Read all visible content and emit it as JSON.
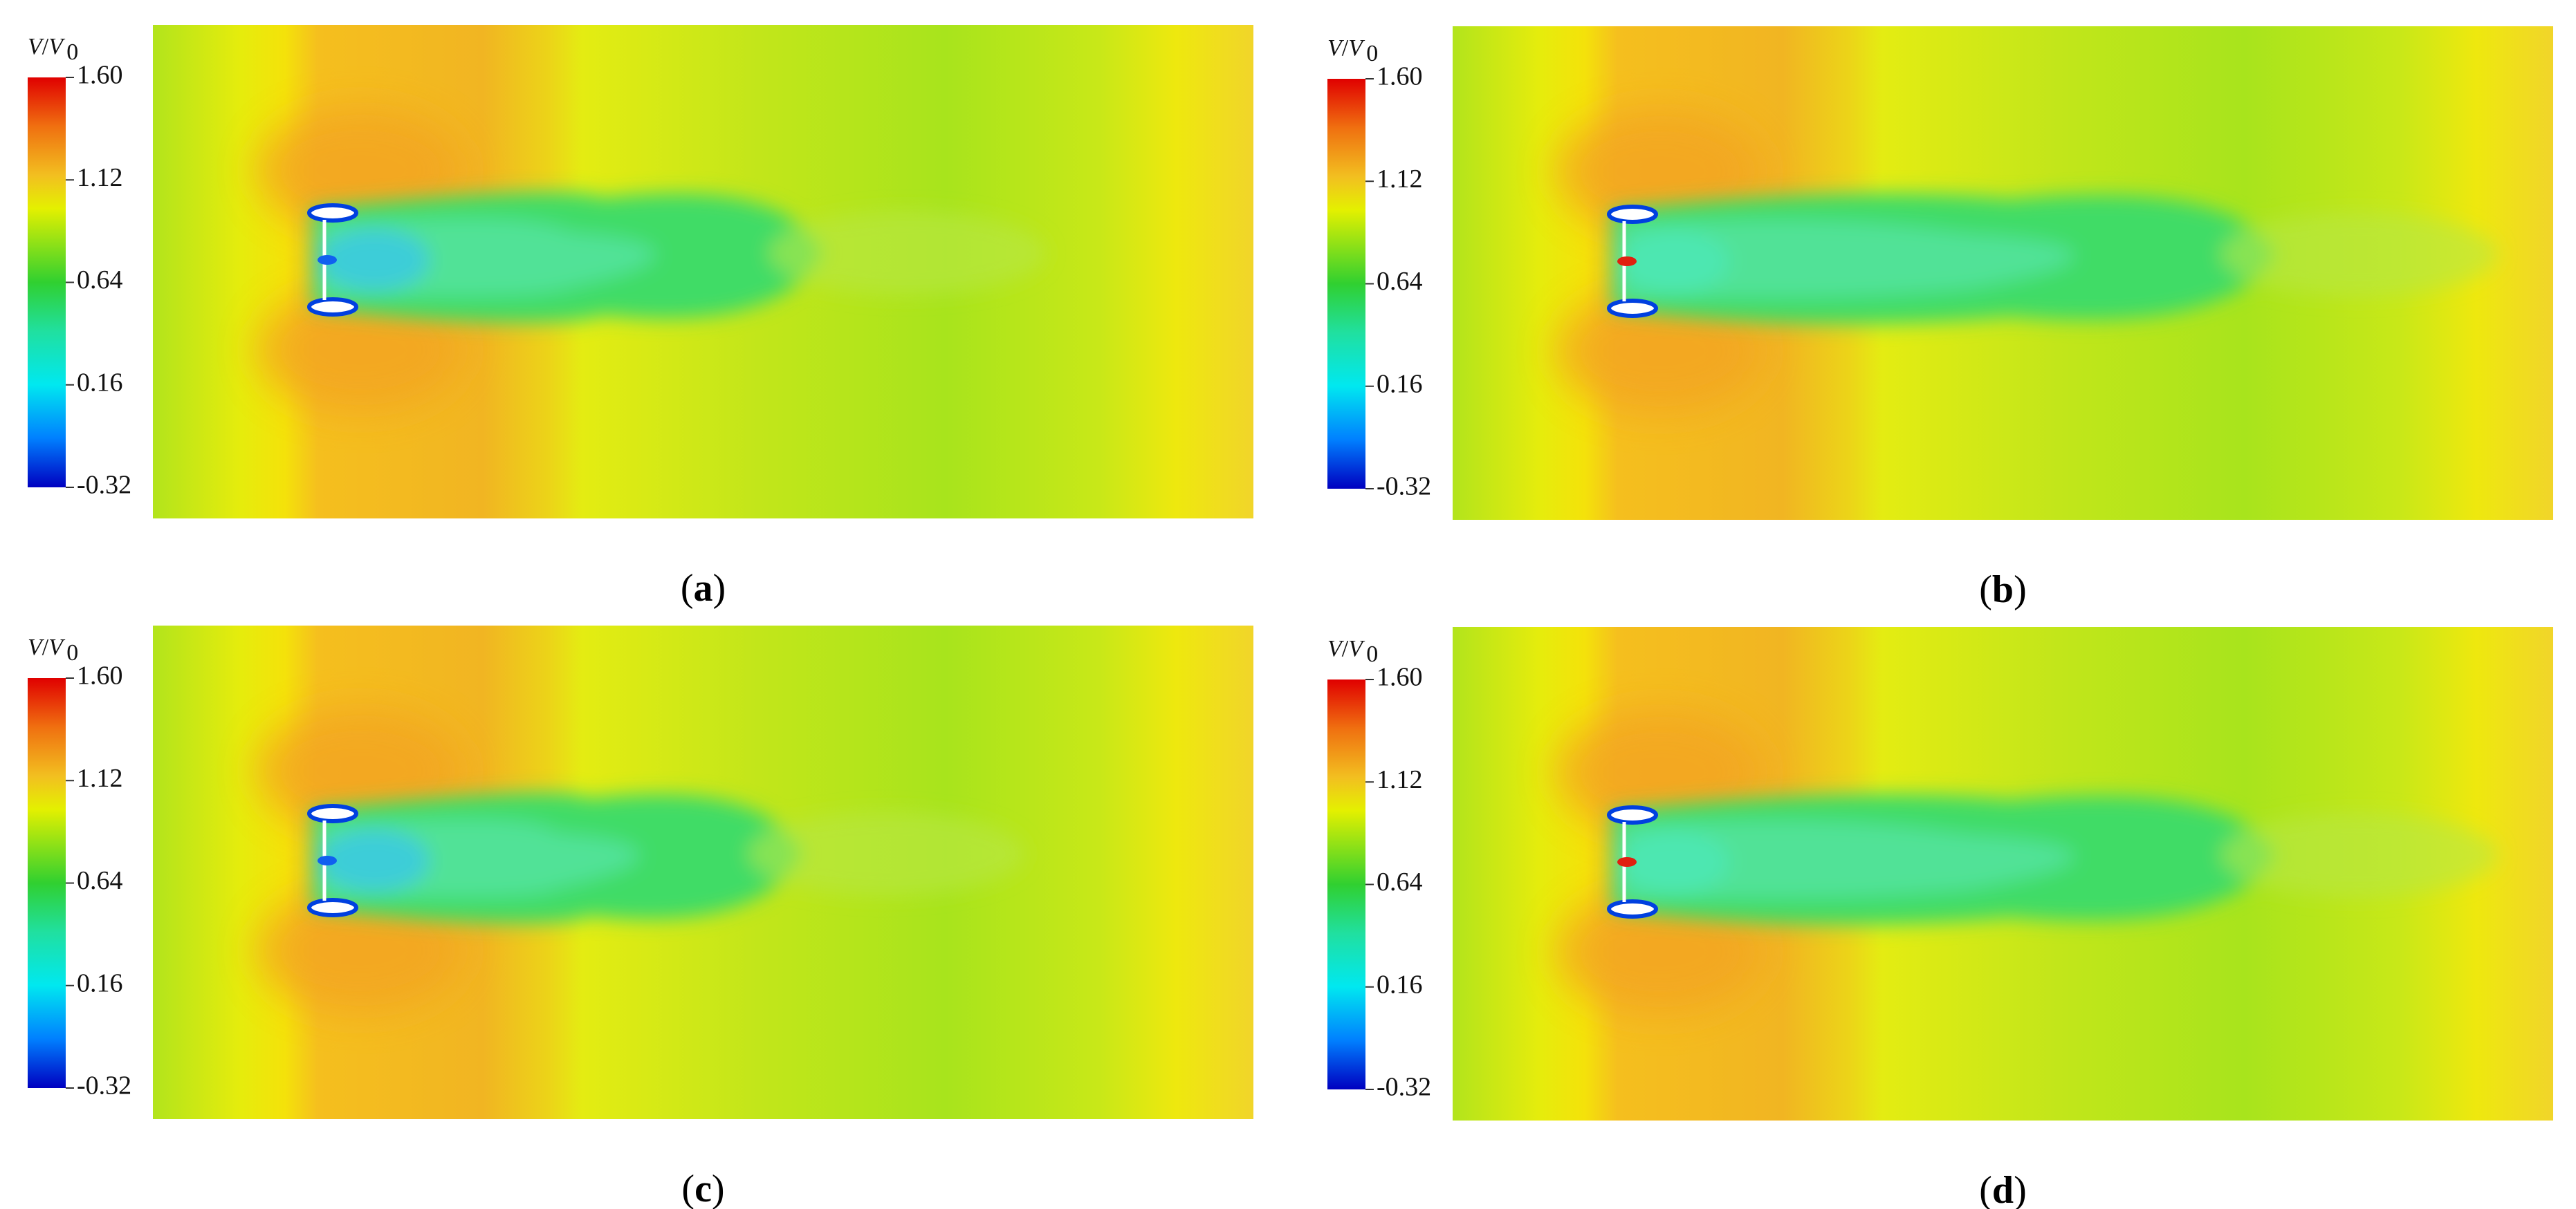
{
  "colorbar": {
    "label": {
      "text": "V/V",
      "subscript": "0"
    },
    "lim": [
      -0.32,
      1.6
    ],
    "ticks": [
      {
        "value": 1.6,
        "label": "1.60"
      },
      {
        "value": 1.12,
        "label": "1.12"
      },
      {
        "value": 0.64,
        "label": "0.64"
      },
      {
        "value": 0.16,
        "label": "0.16"
      },
      {
        "value": -0.32,
        "label": "-0.32"
      }
    ]
  },
  "panels": [
    {
      "label_parts": [
        "(",
        "a",
        ")"
      ]
    },
    {
      "label_parts": [
        "(",
        "b",
        ")"
      ]
    },
    {
      "label_parts": [
        "(",
        "c",
        ")"
      ]
    },
    {
      "label_parts": [
        "(",
        "d",
        ")"
      ]
    }
  ]
}
